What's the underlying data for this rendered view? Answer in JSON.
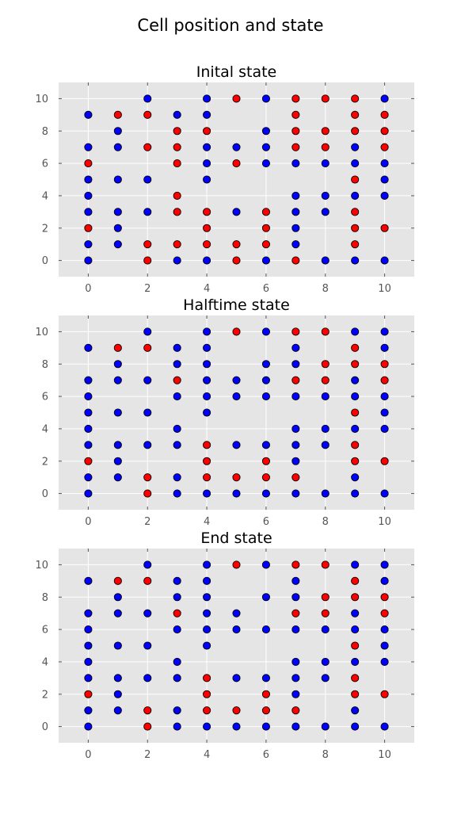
{
  "figure_title": "Cell position and state",
  "chart_data": [
    {
      "type": "scatter",
      "title": "Inital state",
      "xlim": [
        -1,
        11
      ],
      "ylim": [
        -1,
        11
      ],
      "x_ticks": [
        0,
        2,
        4,
        6,
        8,
        10
      ],
      "y_ticks": [
        0,
        2,
        4,
        6,
        8,
        10
      ],
      "grid": true,
      "colors": {
        "blue": "#0000ff",
        "red": "#ff0000"
      },
      "points": [
        [
          0,
          0,
          "b"
        ],
        [
          0,
          1,
          "b"
        ],
        [
          0,
          2,
          "r"
        ],
        [
          0,
          3,
          "b"
        ],
        [
          0,
          4,
          "b"
        ],
        [
          0,
          5,
          "b"
        ],
        [
          0,
          6,
          "r"
        ],
        [
          0,
          7,
          "b"
        ],
        [
          0,
          9,
          "b"
        ],
        [
          1,
          1,
          "b"
        ],
        [
          1,
          2,
          "b"
        ],
        [
          1,
          3,
          "b"
        ],
        [
          1,
          5,
          "b"
        ],
        [
          1,
          7,
          "b"
        ],
        [
          1,
          8,
          "b"
        ],
        [
          1,
          9,
          "r"
        ],
        [
          2,
          0,
          "r"
        ],
        [
          2,
          1,
          "r"
        ],
        [
          2,
          3,
          "b"
        ],
        [
          2,
          5,
          "b"
        ],
        [
          2,
          7,
          "r"
        ],
        [
          2,
          9,
          "r"
        ],
        [
          2,
          10,
          "b"
        ],
        [
          3,
          0,
          "b"
        ],
        [
          3,
          1,
          "r"
        ],
        [
          3,
          3,
          "r"
        ],
        [
          3,
          4,
          "r"
        ],
        [
          3,
          6,
          "r"
        ],
        [
          3,
          7,
          "r"
        ],
        [
          3,
          8,
          "r"
        ],
        [
          3,
          9,
          "b"
        ],
        [
          4,
          0,
          "b"
        ],
        [
          4,
          1,
          "r"
        ],
        [
          4,
          2,
          "r"
        ],
        [
          4,
          3,
          "r"
        ],
        [
          4,
          5,
          "b"
        ],
        [
          4,
          6,
          "b"
        ],
        [
          4,
          7,
          "b"
        ],
        [
          4,
          8,
          "r"
        ],
        [
          4,
          9,
          "b"
        ],
        [
          4,
          10,
          "b"
        ],
        [
          5,
          0,
          "r"
        ],
        [
          5,
          1,
          "r"
        ],
        [
          5,
          3,
          "b"
        ],
        [
          5,
          6,
          "r"
        ],
        [
          5,
          7,
          "b"
        ],
        [
          5,
          10,
          "r"
        ],
        [
          6,
          0,
          "b"
        ],
        [
          6,
          1,
          "r"
        ],
        [
          6,
          2,
          "r"
        ],
        [
          6,
          3,
          "r"
        ],
        [
          6,
          6,
          "b"
        ],
        [
          6,
          7,
          "b"
        ],
        [
          6,
          8,
          "b"
        ],
        [
          6,
          10,
          "b"
        ],
        [
          7,
          0,
          "r"
        ],
        [
          7,
          1,
          "b"
        ],
        [
          7,
          2,
          "b"
        ],
        [
          7,
          3,
          "b"
        ],
        [
          7,
          4,
          "b"
        ],
        [
          7,
          6,
          "b"
        ],
        [
          7,
          7,
          "r"
        ],
        [
          7,
          8,
          "r"
        ],
        [
          7,
          9,
          "r"
        ],
        [
          7,
          10,
          "r"
        ],
        [
          8,
          0,
          "b"
        ],
        [
          8,
          3,
          "b"
        ],
        [
          8,
          4,
          "b"
        ],
        [
          8,
          6,
          "b"
        ],
        [
          8,
          7,
          "r"
        ],
        [
          8,
          8,
          "r"
        ],
        [
          8,
          10,
          "r"
        ],
        [
          9,
          0,
          "b"
        ],
        [
          9,
          1,
          "r"
        ],
        [
          9,
          2,
          "r"
        ],
        [
          9,
          3,
          "r"
        ],
        [
          9,
          4,
          "b"
        ],
        [
          9,
          5,
          "r"
        ],
        [
          9,
          6,
          "b"
        ],
        [
          9,
          7,
          "b"
        ],
        [
          9,
          8,
          "r"
        ],
        [
          9,
          9,
          "r"
        ],
        [
          9,
          10,
          "r"
        ],
        [
          10,
          0,
          "b"
        ],
        [
          10,
          2,
          "r"
        ],
        [
          10,
          4,
          "b"
        ],
        [
          10,
          5,
          "b"
        ],
        [
          10,
          6,
          "b"
        ],
        [
          10,
          7,
          "r"
        ],
        [
          10,
          8,
          "r"
        ],
        [
          10,
          9,
          "r"
        ],
        [
          10,
          10,
          "b"
        ]
      ]
    },
    {
      "type": "scatter",
      "title": "Halftime state",
      "xlim": [
        -1,
        11
      ],
      "ylim": [
        -1,
        11
      ],
      "x_ticks": [
        0,
        2,
        4,
        6,
        8,
        10
      ],
      "y_ticks": [
        0,
        2,
        4,
        6,
        8,
        10
      ],
      "grid": true,
      "colors": {
        "blue": "#0000ff",
        "red": "#ff0000"
      },
      "points": [
        [
          0,
          0,
          "b"
        ],
        [
          0,
          1,
          "b"
        ],
        [
          0,
          2,
          "r"
        ],
        [
          0,
          3,
          "b"
        ],
        [
          0,
          4,
          "b"
        ],
        [
          0,
          5,
          "b"
        ],
        [
          0,
          6,
          "b"
        ],
        [
          0,
          7,
          "b"
        ],
        [
          0,
          9,
          "b"
        ],
        [
          1,
          1,
          "b"
        ],
        [
          1,
          2,
          "b"
        ],
        [
          1,
          3,
          "b"
        ],
        [
          1,
          5,
          "b"
        ],
        [
          1,
          7,
          "b"
        ],
        [
          1,
          8,
          "b"
        ],
        [
          1,
          9,
          "r"
        ],
        [
          2,
          0,
          "r"
        ],
        [
          2,
          1,
          "r"
        ],
        [
          2,
          3,
          "b"
        ],
        [
          2,
          5,
          "b"
        ],
        [
          2,
          7,
          "b"
        ],
        [
          2,
          9,
          "r"
        ],
        [
          2,
          10,
          "b"
        ],
        [
          3,
          0,
          "b"
        ],
        [
          3,
          1,
          "b"
        ],
        [
          3,
          3,
          "b"
        ],
        [
          3,
          4,
          "b"
        ],
        [
          3,
          6,
          "b"
        ],
        [
          3,
          7,
          "r"
        ],
        [
          3,
          8,
          "b"
        ],
        [
          3,
          9,
          "b"
        ],
        [
          4,
          0,
          "b"
        ],
        [
          4,
          1,
          "r"
        ],
        [
          4,
          2,
          "r"
        ],
        [
          4,
          3,
          "r"
        ],
        [
          4,
          5,
          "b"
        ],
        [
          4,
          6,
          "b"
        ],
        [
          4,
          7,
          "b"
        ],
        [
          4,
          8,
          "b"
        ],
        [
          4,
          9,
          "b"
        ],
        [
          4,
          10,
          "b"
        ],
        [
          5,
          0,
          "b"
        ],
        [
          5,
          1,
          "r"
        ],
        [
          5,
          3,
          "b"
        ],
        [
          5,
          6,
          "b"
        ],
        [
          5,
          7,
          "b"
        ],
        [
          5,
          10,
          "r"
        ],
        [
          6,
          0,
          "b"
        ],
        [
          6,
          1,
          "r"
        ],
        [
          6,
          2,
          "r"
        ],
        [
          6,
          3,
          "b"
        ],
        [
          6,
          6,
          "b"
        ],
        [
          6,
          7,
          "b"
        ],
        [
          6,
          8,
          "b"
        ],
        [
          6,
          10,
          "b"
        ],
        [
          7,
          0,
          "b"
        ],
        [
          7,
          1,
          "r"
        ],
        [
          7,
          2,
          "b"
        ],
        [
          7,
          3,
          "b"
        ],
        [
          7,
          4,
          "b"
        ],
        [
          7,
          6,
          "b"
        ],
        [
          7,
          7,
          "r"
        ],
        [
          7,
          8,
          "b"
        ],
        [
          7,
          9,
          "b"
        ],
        [
          7,
          10,
          "r"
        ],
        [
          8,
          0,
          "b"
        ],
        [
          8,
          3,
          "b"
        ],
        [
          8,
          4,
          "b"
        ],
        [
          8,
          6,
          "b"
        ],
        [
          8,
          7,
          "r"
        ],
        [
          8,
          8,
          "r"
        ],
        [
          8,
          10,
          "r"
        ],
        [
          9,
          0,
          "b"
        ],
        [
          9,
          1,
          "b"
        ],
        [
          9,
          2,
          "r"
        ],
        [
          9,
          3,
          "r"
        ],
        [
          9,
          4,
          "b"
        ],
        [
          9,
          5,
          "r"
        ],
        [
          9,
          6,
          "b"
        ],
        [
          9,
          7,
          "b"
        ],
        [
          9,
          8,
          "r"
        ],
        [
          9,
          9,
          "r"
        ],
        [
          9,
          10,
          "b"
        ],
        [
          10,
          0,
          "b"
        ],
        [
          10,
          2,
          "r"
        ],
        [
          10,
          4,
          "b"
        ],
        [
          10,
          5,
          "b"
        ],
        [
          10,
          6,
          "b"
        ],
        [
          10,
          7,
          "r"
        ],
        [
          10,
          8,
          "r"
        ],
        [
          10,
          9,
          "b"
        ],
        [
          10,
          10,
          "b"
        ]
      ]
    },
    {
      "type": "scatter",
      "title": "End state",
      "xlim": [
        -1,
        11
      ],
      "ylim": [
        -1,
        11
      ],
      "x_ticks": [
        0,
        2,
        4,
        6,
        8,
        10
      ],
      "y_ticks": [
        0,
        2,
        4,
        6,
        8,
        10
      ],
      "grid": true,
      "colors": {
        "blue": "#0000ff",
        "red": "#ff0000"
      },
      "points": [
        [
          0,
          0,
          "b"
        ],
        [
          0,
          1,
          "b"
        ],
        [
          0,
          2,
          "r"
        ],
        [
          0,
          3,
          "b"
        ],
        [
          0,
          4,
          "b"
        ],
        [
          0,
          5,
          "b"
        ],
        [
          0,
          6,
          "b"
        ],
        [
          0,
          7,
          "b"
        ],
        [
          0,
          9,
          "b"
        ],
        [
          1,
          1,
          "b"
        ],
        [
          1,
          2,
          "b"
        ],
        [
          1,
          3,
          "b"
        ],
        [
          1,
          5,
          "b"
        ],
        [
          1,
          7,
          "b"
        ],
        [
          1,
          8,
          "b"
        ],
        [
          1,
          9,
          "r"
        ],
        [
          2,
          0,
          "r"
        ],
        [
          2,
          1,
          "r"
        ],
        [
          2,
          3,
          "b"
        ],
        [
          2,
          5,
          "b"
        ],
        [
          2,
          7,
          "b"
        ],
        [
          2,
          9,
          "r"
        ],
        [
          2,
          10,
          "b"
        ],
        [
          3,
          0,
          "b"
        ],
        [
          3,
          1,
          "b"
        ],
        [
          3,
          3,
          "b"
        ],
        [
          3,
          4,
          "b"
        ],
        [
          3,
          6,
          "b"
        ],
        [
          3,
          7,
          "r"
        ],
        [
          3,
          8,
          "b"
        ],
        [
          3,
          9,
          "b"
        ],
        [
          4,
          0,
          "b"
        ],
        [
          4,
          1,
          "r"
        ],
        [
          4,
          2,
          "r"
        ],
        [
          4,
          3,
          "r"
        ],
        [
          4,
          5,
          "b"
        ],
        [
          4,
          6,
          "b"
        ],
        [
          4,
          7,
          "b"
        ],
        [
          4,
          8,
          "b"
        ],
        [
          4,
          9,
          "b"
        ],
        [
          4,
          10,
          "b"
        ],
        [
          5,
          0,
          "b"
        ],
        [
          5,
          1,
          "r"
        ],
        [
          5,
          3,
          "b"
        ],
        [
          5,
          6,
          "b"
        ],
        [
          5,
          7,
          "b"
        ],
        [
          5,
          10,
          "r"
        ],
        [
          6,
          0,
          "b"
        ],
        [
          6,
          1,
          "r"
        ],
        [
          6,
          2,
          "r"
        ],
        [
          6,
          3,
          "b"
        ],
        [
          6,
          6,
          "b"
        ],
        [
          6,
          8,
          "b"
        ],
        [
          6,
          10,
          "b"
        ],
        [
          7,
          0,
          "b"
        ],
        [
          7,
          1,
          "r"
        ],
        [
          7,
          2,
          "b"
        ],
        [
          7,
          3,
          "b"
        ],
        [
          7,
          4,
          "b"
        ],
        [
          7,
          6,
          "b"
        ],
        [
          7,
          7,
          "r"
        ],
        [
          7,
          8,
          "b"
        ],
        [
          7,
          9,
          "b"
        ],
        [
          7,
          10,
          "r"
        ],
        [
          8,
          0,
          "b"
        ],
        [
          8,
          3,
          "b"
        ],
        [
          8,
          4,
          "b"
        ],
        [
          8,
          6,
          "b"
        ],
        [
          8,
          7,
          "r"
        ],
        [
          8,
          8,
          "r"
        ],
        [
          8,
          10,
          "r"
        ],
        [
          9,
          0,
          "b"
        ],
        [
          9,
          1,
          "b"
        ],
        [
          9,
          2,
          "r"
        ],
        [
          9,
          3,
          "r"
        ],
        [
          9,
          4,
          "b"
        ],
        [
          9,
          5,
          "r"
        ],
        [
          9,
          6,
          "b"
        ],
        [
          9,
          7,
          "b"
        ],
        [
          9,
          8,
          "r"
        ],
        [
          9,
          9,
          "r"
        ],
        [
          9,
          10,
          "b"
        ],
        [
          10,
          0,
          "b"
        ],
        [
          10,
          2,
          "r"
        ],
        [
          10,
          4,
          "b"
        ],
        [
          10,
          5,
          "b"
        ],
        [
          10,
          6,
          "b"
        ],
        [
          10,
          7,
          "r"
        ],
        [
          10,
          8,
          "r"
        ],
        [
          10,
          9,
          "b"
        ],
        [
          10,
          10,
          "b"
        ]
      ]
    }
  ]
}
